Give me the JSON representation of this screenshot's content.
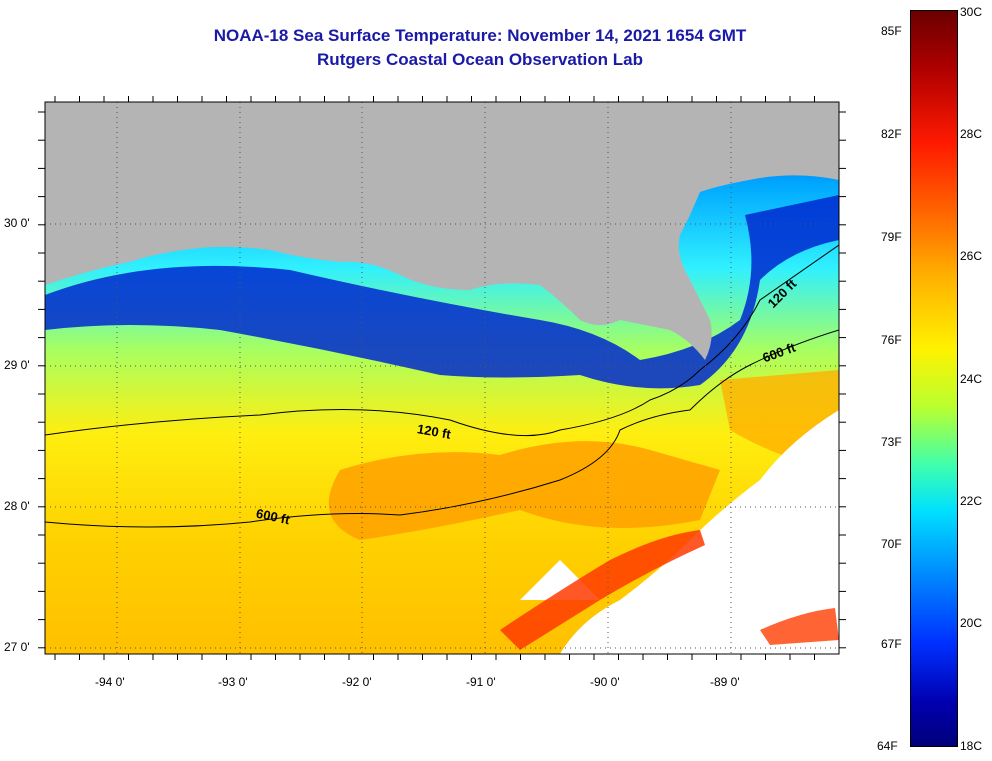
{
  "header": {
    "title": "NOAA-18 Sea Surface Temperature:  November 14, 2021 1654 GMT",
    "subtitle": "Rutgers Coastal Ocean Observation Lab"
  },
  "map": {
    "lat_labels": [
      "30 0'",
      "29 0'",
      "28 0'",
      "27 0'"
    ],
    "lon_labels": [
      "-94 0'",
      "-93 0'",
      "-92 0'",
      "-91 0'",
      "-90 0'",
      "-89 0'"
    ],
    "contour_labels": [
      "120 ft",
      "600 ft",
      "120 ft",
      "600 ft"
    ],
    "colors": {
      "land": "#b4b4b4",
      "no_data": "#ffffff",
      "cold_nearshore": "#0018b8",
      "warm_offshore": "#ffb000",
      "contour": "#000000"
    }
  },
  "colorbar": {
    "fahrenheit_labels": [
      "85F",
      "82F",
      "79F",
      "76F",
      "73F",
      "70F",
      "67F",
      "64F"
    ],
    "celsius_labels": [
      "30C",
      "28C",
      "26C",
      "24C",
      "22C",
      "20C",
      "18C"
    ],
    "range_c": [
      18,
      30
    ],
    "range_f": [
      64,
      85
    ]
  }
}
